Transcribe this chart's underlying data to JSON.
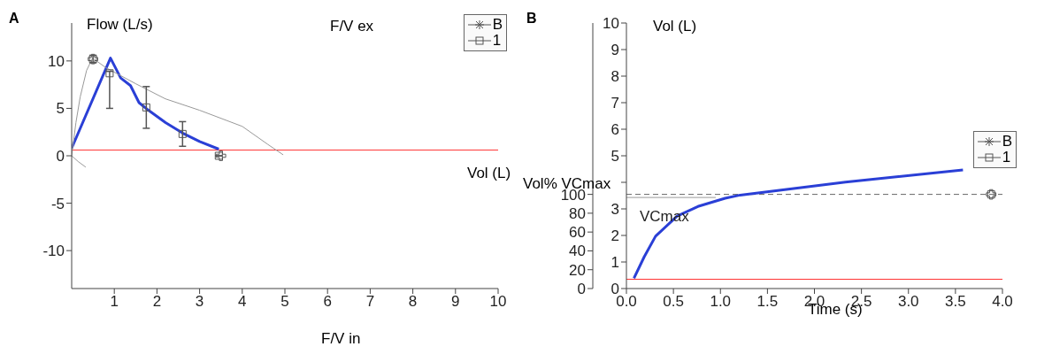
{
  "chart_data": [
    {
      "type": "line",
      "title": "A",
      "xlabel": "Vol (L)",
      "ylabel": "Flow (L/s)",
      "annotations": [
        "F/V ex",
        "F/V in"
      ],
      "xlim": [
        0,
        10
      ],
      "xticks": [
        1,
        2,
        3,
        4,
        5,
        6,
        7,
        8,
        9,
        10
      ],
      "ylim": [
        -14,
        14
      ],
      "yticks": [
        -10,
        -5,
        0,
        5,
        10
      ],
      "legend": "top right",
      "marker": "none",
      "ref_lines": [
        {
          "axis": "y",
          "value": 0.6,
          "color": "#ff3333"
        }
      ],
      "series": [
        {
          "color": "#2a3fd6",
          "x": [
            0,
            0.91,
            1.15,
            1.38,
            1.58,
            1.8,
            2.2,
            2.6,
            3.0,
            3.45
          ],
          "values": [
            0.8,
            10.3,
            8.2,
            7.4,
            5.6,
            4.8,
            3.5,
            2.4,
            1.5,
            0.7
          ]
        },
        {
          "color": "#999999",
          "x": [
            0,
            0.1,
            0.2,
            0.35,
            0.49,
            0.8,
            1.5,
            2.2,
            3.0,
            4.0,
            4.6,
            4.96
          ],
          "values": [
            0,
            3.5,
            6.2,
            9.0,
            10.3,
            9.3,
            7.6,
            6.0,
            4.8,
            3.1,
            1.2,
            0.1
          ]
        },
        {
          "color": "#999999",
          "x": [
            0,
            0.15,
            0.33
          ],
          "values": [
            0,
            -0.6,
            -1.2
          ]
        },
        {
          "name": "B",
          "type": "scatter",
          "marker": "cross",
          "color": "#555555",
          "x": [
            0.5,
            3.5
          ],
          "values": [
            10.2,
            0
          ]
        },
        {
          "name": "1",
          "type": "scatter",
          "marker": "square",
          "color": "#555555",
          "x": [
            0.5,
            0.89,
            1.75,
            2.6,
            3.45
          ],
          "values": [
            10.2,
            8.7,
            5.1,
            2.3,
            0
          ],
          "errors": [
            0.4,
            [
              5.0,
              8.9
            ],
            [
              2.9,
              7.3
            ],
            [
              1.0,
              3.6
            ],
            null
          ]
        }
      ]
    },
    {
      "type": "line",
      "title": "B",
      "xlabel": "Time (s)",
      "ylabel": "Vol (L)",
      "y2label": "Vol% VCmax",
      "xlim": [
        0,
        4
      ],
      "xticks": [
        {
          "value": 0,
          "label": "0.0"
        },
        {
          "value": 0.5,
          "label": "0.5"
        },
        {
          "value": 1,
          "label": "1.0"
        },
        {
          "value": 1.5,
          "label": "1.5"
        },
        {
          "value": 2,
          "label": "2.0"
        },
        {
          "value": 2.5,
          "label": "2.5"
        },
        {
          "value": 3,
          "label": "3.0"
        },
        {
          "value": 3.5,
          "label": "3.5"
        },
        {
          "value": 4,
          "label": "4.0"
        }
      ],
      "ylim": [
        0,
        10
      ],
      "yticks": [
        0,
        1,
        2,
        3,
        {
          "value": 4,
          "label": null
        },
        5,
        6,
        7,
        8,
        9,
        10
      ],
      "y2lim": [
        0,
        282
      ],
      "y2ticks": [
        0,
        20,
        40,
        60,
        80,
        100
      ],
      "legend": "right",
      "marker": "none",
      "ref_lines": [
        {
          "axis": "y",
          "value": 0.35,
          "color": "#ff3333"
        },
        {
          "axis": "y2",
          "value": 100,
          "label": "VCmax",
          "color": "#666666",
          "line_style": "dashed"
        }
      ],
      "series": [
        {
          "color": "#2a3fd6",
          "x": [
            0.08,
            0.19,
            0.31,
            0.54,
            0.76,
            1.05,
            1.21,
            2.33,
            3.58
          ],
          "values": [
            0.39,
            1.2,
            1.97,
            2.73,
            3.09,
            3.4,
            3.52,
            4.01,
            4.47
          ]
        },
        {
          "color": "#999999",
          "x": [
            0,
            0.95
          ],
          "values": [
            3.43,
            3.43
          ]
        },
        {
          "name": "B",
          "type": "scatter",
          "marker": "cross",
          "axis": "y2",
          "color": "#555555",
          "x": [
            3.88
          ],
          "values": [
            100
          ]
        },
        {
          "name": "1",
          "type": "scatter",
          "marker": "square",
          "axis": "y2",
          "color": "#555555",
          "x": [
            3.88
          ],
          "values": [
            100
          ]
        }
      ]
    }
  ]
}
